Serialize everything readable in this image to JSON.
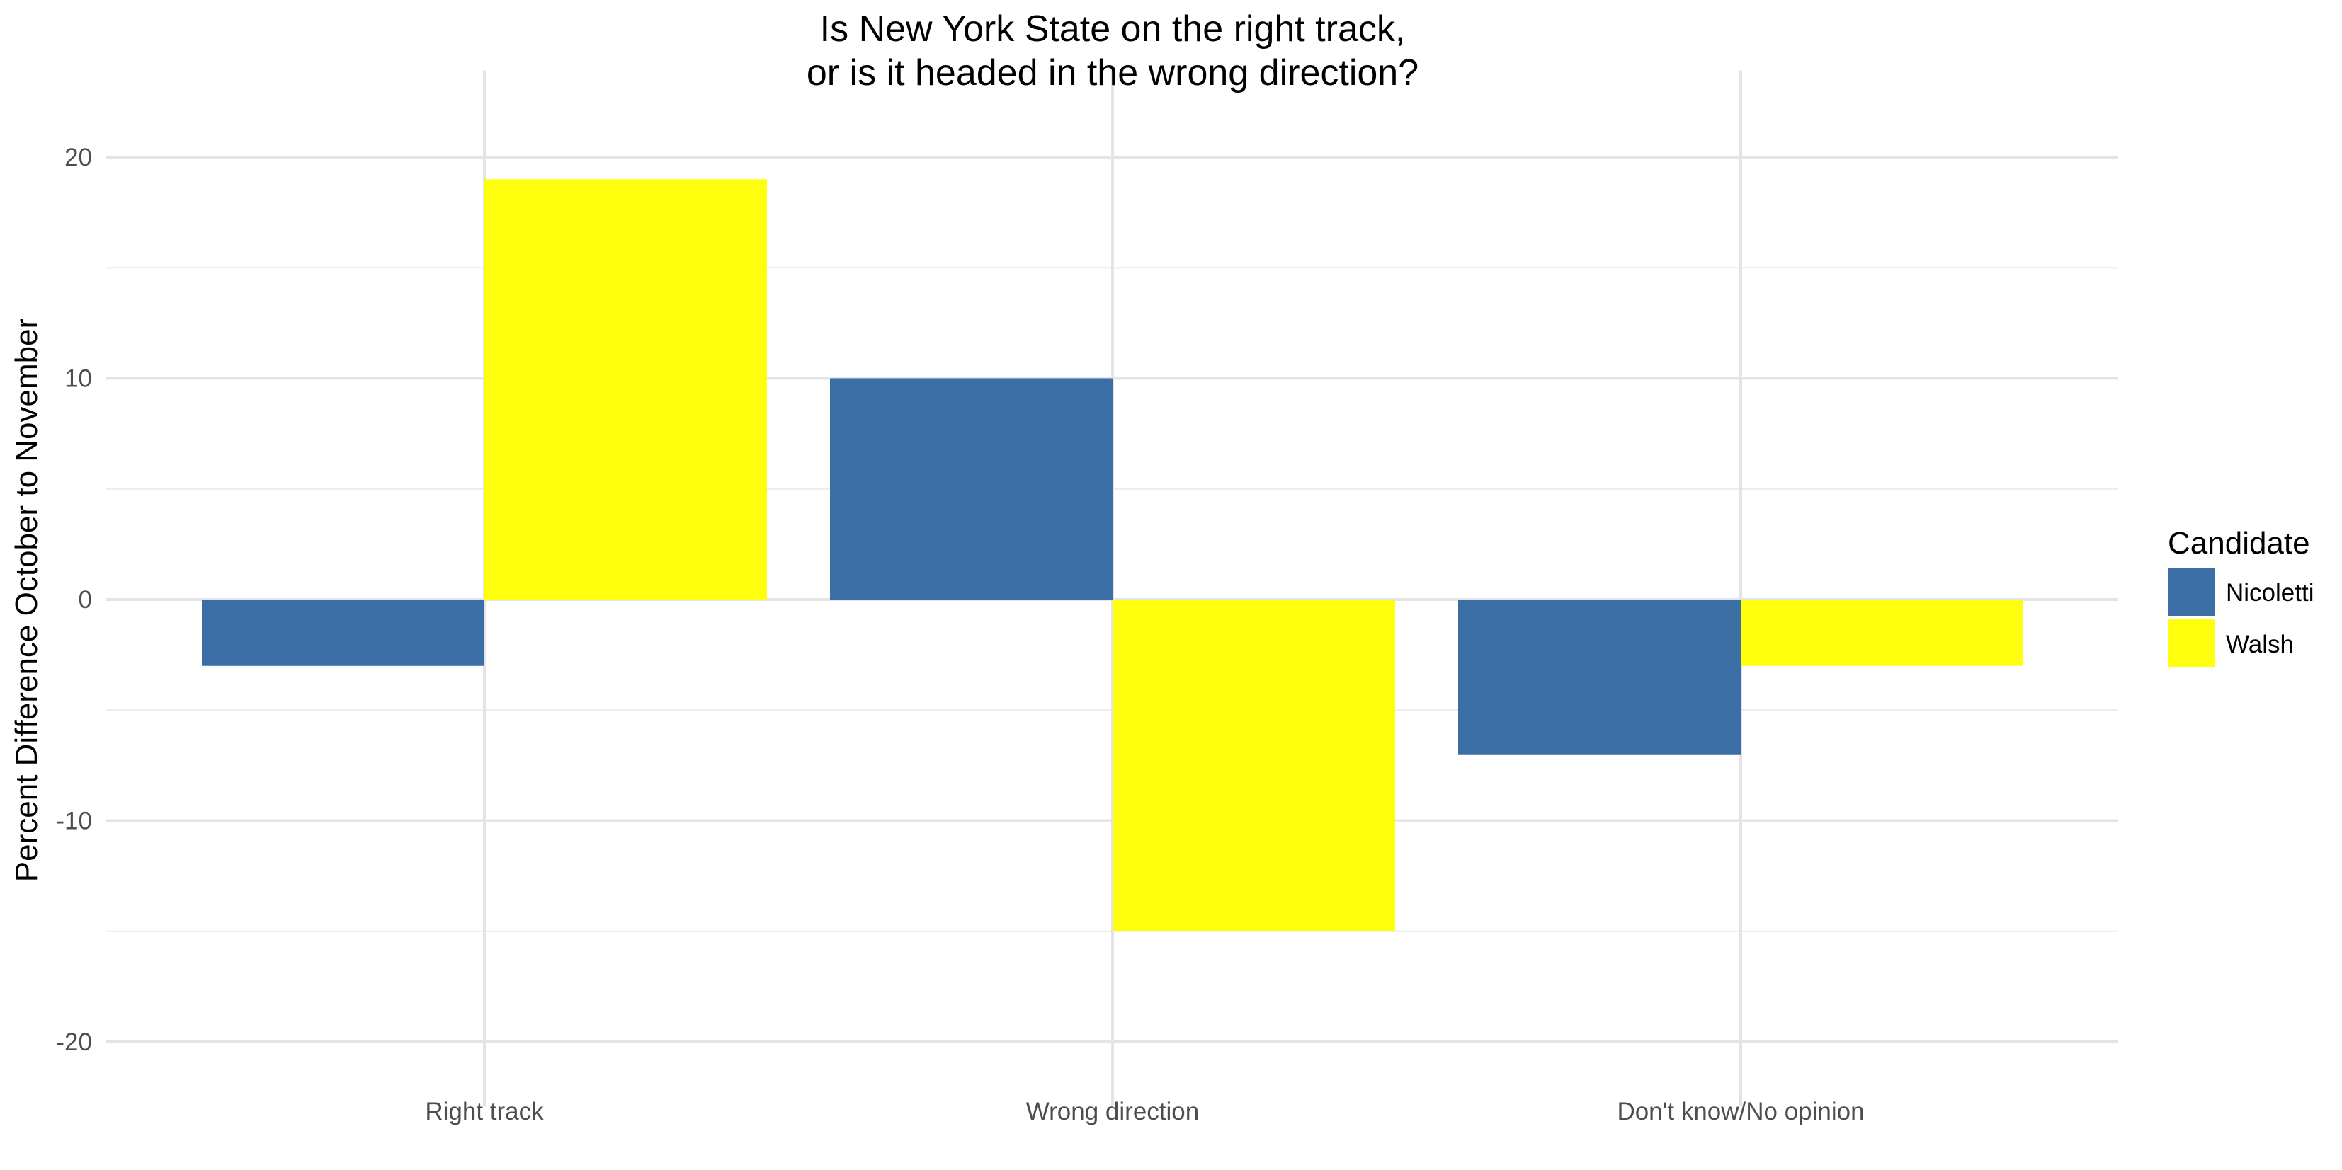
{
  "chart_data": {
    "type": "bar",
    "title_lines": [
      "Is New York State on the right track,",
      "or is it headed in the wrong direction?"
    ],
    "xlabel": "",
    "ylabel": "Percent Difference October to November",
    "categories": [
      "Right track",
      "Wrong direction",
      "Don't know/No opinion"
    ],
    "series": [
      {
        "name": "Nicoletti",
        "color": "#3a6ea5",
        "values": [
          -3,
          10,
          -7
        ]
      },
      {
        "name": "Walsh",
        "color": "#ffff0d",
        "values": [
          19,
          -15,
          -3
        ]
      }
    ],
    "ylim": [
      -21,
      22
    ],
    "yticks": [
      -20,
      -10,
      0,
      10,
      20
    ],
    "ytick_labels": [
      "-20",
      "-10",
      "0",
      "10",
      "20"
    ],
    "grid": true,
    "legend": {
      "title": "Candidate",
      "position": "right"
    }
  }
}
